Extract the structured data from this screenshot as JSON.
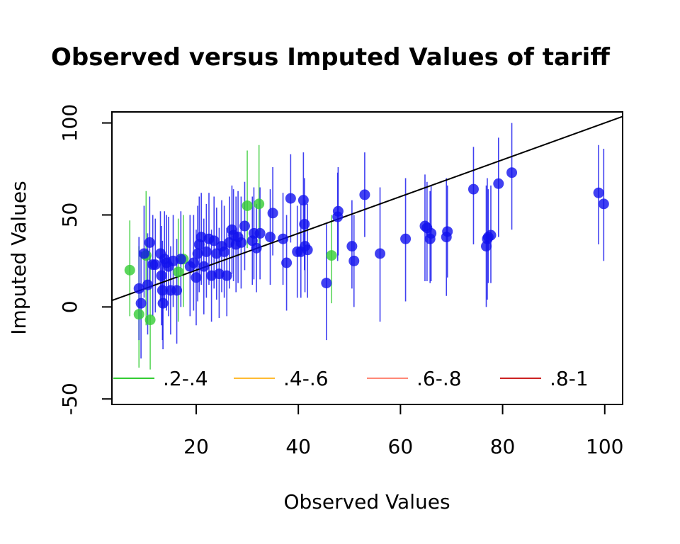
{
  "chart_data": {
    "type": "scatter",
    "title": "Observed versus Imputed Values of tariff",
    "xlabel": "Observed Values",
    "ylabel": "Imputed Values",
    "xlim": [
      3.5,
      103.5
    ],
    "ylim": [
      -53,
      106
    ],
    "x_ticks": [
      20,
      40,
      60,
      80,
      100
    ],
    "y_ticks": [
      -50,
      0,
      50,
      100
    ],
    "x_tick_labels": [
      "20",
      "40",
      "60",
      "80",
      "100"
    ],
    "y_tick_labels": [
      "-50",
      "0",
      "50",
      "100"
    ],
    "reference_line": {
      "intercept": 0,
      "slope": 1,
      "color": "#000000"
    },
    "legend": {
      "position": "bottom",
      "entries": [
        {
          "label": ".2-.4",
          "color": "#33cc33"
        },
        {
          "label": ".4-.6",
          "color": "#ffbb33"
        },
        {
          "label": ".6-.8",
          "color": "#ff8877"
        },
        {
          "label": ".8-1",
          "color": "#cc2222"
        }
      ]
    },
    "series": [
      {
        "color": "#33cc33",
        "points": [
          {
            "x": 7,
            "y": 20,
            "lo": -5,
            "hi": 47
          },
          {
            "x": 8.8,
            "y": -4,
            "lo": -33,
            "hi": 33
          },
          {
            "x": 10.2,
            "y": 28,
            "lo": -10,
            "hi": 63
          },
          {
            "x": 11,
            "y": -7,
            "lo": -34,
            "hi": 28
          },
          {
            "x": 16.5,
            "y": 19,
            "lo": -8,
            "hi": 48
          },
          {
            "x": 17.5,
            "y": 26,
            "lo": 0,
            "hi": 50
          },
          {
            "x": 30,
            "y": 55,
            "lo": 32,
            "hi": 85
          },
          {
            "x": 32.3,
            "y": 56,
            "lo": 30,
            "hi": 88
          },
          {
            "x": 46.5,
            "y": 28,
            "lo": 2,
            "hi": 50
          }
        ]
      },
      {
        "color": "#1111ee",
        "points": [
          {
            "x": 8.8,
            "y": 10,
            "lo": -18,
            "hi": 38
          },
          {
            "x": 9.2,
            "y": 2,
            "lo": -28,
            "hi": 30
          },
          {
            "x": 9.8,
            "y": 29,
            "lo": 5,
            "hi": 55
          },
          {
            "x": 10.5,
            "y": 12,
            "lo": -15,
            "hi": 40
          },
          {
            "x": 10.9,
            "y": 35,
            "lo": 10,
            "hi": 60
          },
          {
            "x": 11.5,
            "y": 23,
            "lo": -5,
            "hi": 50
          },
          {
            "x": 12,
            "y": 23,
            "lo": -3,
            "hi": 48
          },
          {
            "x": 13,
            "y": 29,
            "lo": 3,
            "hi": 52
          },
          {
            "x": 13.2,
            "y": 17,
            "lo": -10,
            "hi": 44
          },
          {
            "x": 13.4,
            "y": 9,
            "lo": -18,
            "hi": 36
          },
          {
            "x": 13.5,
            "y": 2,
            "lo": -23,
            "hi": 26
          },
          {
            "x": 13.8,
            "y": 26,
            "lo": 0,
            "hi": 52
          },
          {
            "x": 14.2,
            "y": 24,
            "lo": -2,
            "hi": 50
          },
          {
            "x": 14.6,
            "y": 22,
            "lo": -5,
            "hi": 49
          },
          {
            "x": 15,
            "y": 9,
            "lo": -15,
            "hi": 33
          },
          {
            "x": 15.5,
            "y": 25,
            "lo": 0,
            "hi": 50
          },
          {
            "x": 16.2,
            "y": 9,
            "lo": -20,
            "hi": 37
          },
          {
            "x": 17,
            "y": 26,
            "lo": 0,
            "hi": 52
          },
          {
            "x": 18.8,
            "y": 22,
            "lo": -5,
            "hi": 50
          },
          {
            "x": 19.5,
            "y": 24,
            "lo": -2,
            "hi": 50
          },
          {
            "x": 20,
            "y": 16,
            "lo": -10,
            "hi": 42
          },
          {
            "x": 20.3,
            "y": 29,
            "lo": 3,
            "hi": 55
          },
          {
            "x": 20.6,
            "y": 34,
            "lo": 8,
            "hi": 60
          },
          {
            "x": 21,
            "y": 38,
            "lo": 12,
            "hi": 62
          },
          {
            "x": 21.5,
            "y": 22,
            "lo": -4,
            "hi": 48
          },
          {
            "x": 22,
            "y": 30,
            "lo": 5,
            "hi": 56
          },
          {
            "x": 22.5,
            "y": 37,
            "lo": 12,
            "hi": 62
          },
          {
            "x": 23,
            "y": 17,
            "lo": -8,
            "hi": 42
          },
          {
            "x": 23.5,
            "y": 36,
            "lo": 10,
            "hi": 60
          },
          {
            "x": 24,
            "y": 29,
            "lo": 4,
            "hi": 54
          },
          {
            "x": 24.5,
            "y": 18,
            "lo": -6,
            "hi": 43
          },
          {
            "x": 25,
            "y": 33,
            "lo": 8,
            "hi": 58
          },
          {
            "x": 25.5,
            "y": 30,
            "lo": 5,
            "hi": 55
          },
          {
            "x": 26,
            "y": 17,
            "lo": -5,
            "hi": 43
          },
          {
            "x": 26.5,
            "y": 35,
            "lo": 10,
            "hi": 60
          },
          {
            "x": 27,
            "y": 42,
            "lo": 18,
            "hi": 66
          },
          {
            "x": 27.3,
            "y": 39,
            "lo": 14,
            "hi": 64
          },
          {
            "x": 27.8,
            "y": 34,
            "lo": 8,
            "hi": 60
          },
          {
            "x": 28.2,
            "y": 38,
            "lo": 13,
            "hi": 63
          },
          {
            "x": 28.8,
            "y": 35,
            "lo": 10,
            "hi": 60
          },
          {
            "x": 29.5,
            "y": 44,
            "lo": 20,
            "hi": 68
          },
          {
            "x": 31,
            "y": 36,
            "lo": 12,
            "hi": 60
          },
          {
            "x": 31.3,
            "y": 40,
            "lo": 15,
            "hi": 65
          },
          {
            "x": 31.8,
            "y": 32,
            "lo": 8,
            "hi": 56
          },
          {
            "x": 32.5,
            "y": 40,
            "lo": 15,
            "hi": 65
          },
          {
            "x": 34.5,
            "y": 38,
            "lo": 12,
            "hi": 64
          },
          {
            "x": 35,
            "y": 51,
            "lo": 28,
            "hi": 76
          },
          {
            "x": 37,
            "y": 37,
            "lo": 12,
            "hi": 62
          },
          {
            "x": 37.7,
            "y": 24,
            "lo": -2,
            "hi": 50
          },
          {
            "x": 38.5,
            "y": 59,
            "lo": 35,
            "hi": 83
          },
          {
            "x": 39.8,
            "y": 30,
            "lo": 5,
            "hi": 55
          },
          {
            "x": 40.5,
            "y": 30,
            "lo": 5,
            "hi": 56
          },
          {
            "x": 41,
            "y": 58,
            "lo": 33,
            "hi": 84
          },
          {
            "x": 41.2,
            "y": 45,
            "lo": 20,
            "hi": 70
          },
          {
            "x": 41.3,
            "y": 33,
            "lo": 8,
            "hi": 58
          },
          {
            "x": 41.8,
            "y": 31,
            "lo": 5,
            "hi": 56
          },
          {
            "x": 45.5,
            "y": 13,
            "lo": -18,
            "hi": 45
          },
          {
            "x": 47.7,
            "y": 49,
            "lo": 25,
            "hi": 73
          },
          {
            "x": 47.8,
            "y": 52,
            "lo": 28,
            "hi": 76
          },
          {
            "x": 50.5,
            "y": 33,
            "lo": 10,
            "hi": 58
          },
          {
            "x": 50.9,
            "y": 25,
            "lo": 0,
            "hi": 50
          },
          {
            "x": 53,
            "y": 61,
            "lo": 38,
            "hi": 84
          },
          {
            "x": 56,
            "y": 29,
            "lo": -8,
            "hi": 65
          },
          {
            "x": 61,
            "y": 37,
            "lo": 3,
            "hi": 70
          },
          {
            "x": 64.8,
            "y": 44,
            "lo": 14,
            "hi": 72
          },
          {
            "x": 65.2,
            "y": 43,
            "lo": 14,
            "hi": 68
          },
          {
            "x": 65.8,
            "y": 37,
            "lo": 13,
            "hi": 63
          },
          {
            "x": 66,
            "y": 40,
            "lo": 14,
            "hi": 66
          },
          {
            "x": 69,
            "y": 38,
            "lo": 6,
            "hi": 70
          },
          {
            "x": 69.2,
            "y": 41,
            "lo": 16,
            "hi": 66
          },
          {
            "x": 74.3,
            "y": 64,
            "lo": 34,
            "hi": 87
          },
          {
            "x": 76.8,
            "y": 33,
            "lo": 0,
            "hi": 66
          },
          {
            "x": 77,
            "y": 37,
            "lo": 4,
            "hi": 70
          },
          {
            "x": 77.2,
            "y": 38,
            "lo": 13,
            "hi": 64
          },
          {
            "x": 77.7,
            "y": 39,
            "lo": 13,
            "hi": 66
          },
          {
            "x": 79.2,
            "y": 67,
            "lo": 38,
            "hi": 92
          },
          {
            "x": 81.8,
            "y": 73,
            "lo": 42,
            "hi": 100
          },
          {
            "x": 98.8,
            "y": 62,
            "lo": 34,
            "hi": 88
          },
          {
            "x": 99.8,
            "y": 56,
            "lo": 25,
            "hi": 86
          }
        ]
      }
    ]
  }
}
